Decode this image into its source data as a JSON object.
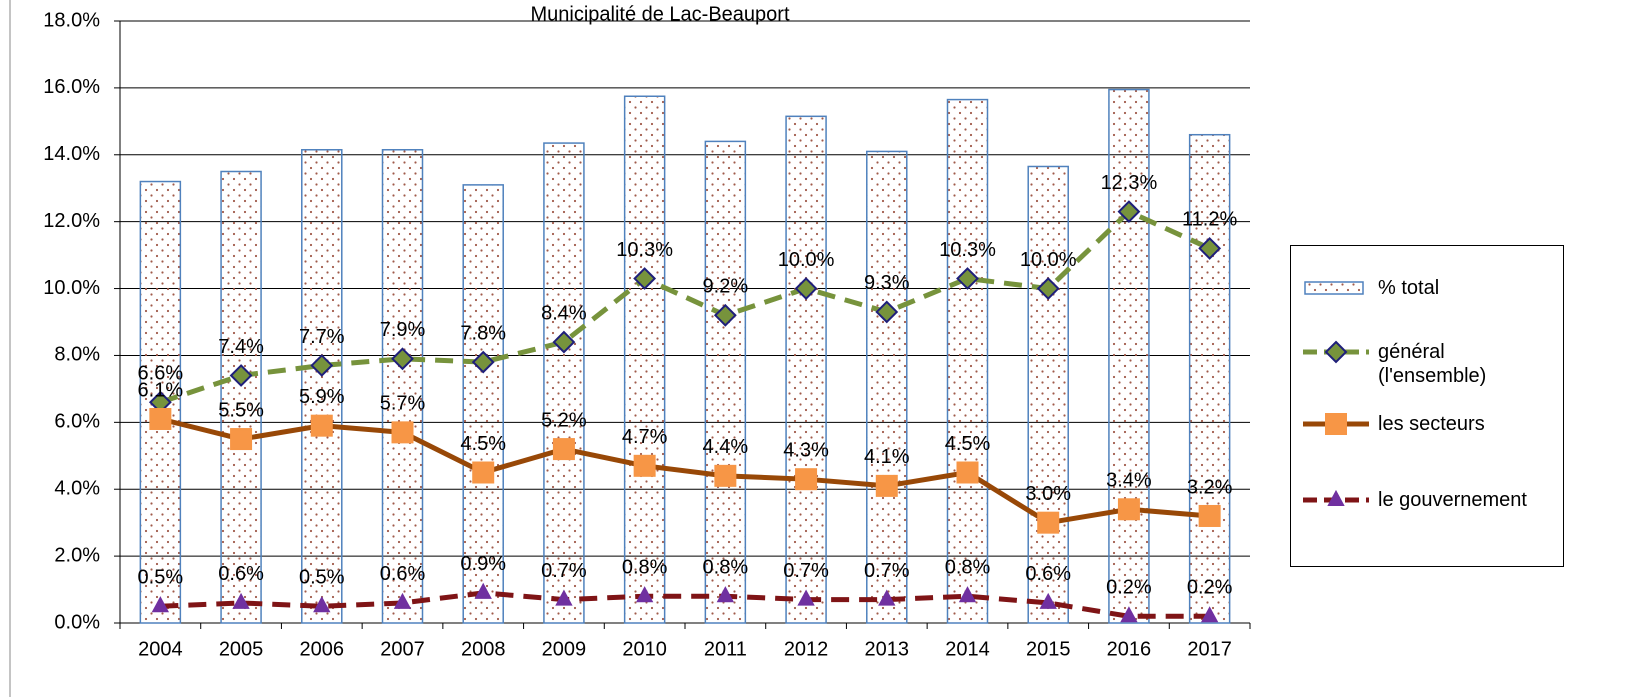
{
  "chart_data": {
    "type": "bar-line",
    "title": "Municipalité de Lac-Beauport",
    "categories": [
      "2004",
      "2005",
      "2006",
      "2007",
      "2008",
      "2009",
      "2010",
      "2011",
      "2012",
      "2013",
      "2014",
      "2015",
      "2016",
      "2017"
    ],
    "series": [
      {
        "name": "% total",
        "kind": "bar",
        "color": "#4f81bd",
        "pattern_color": "#a05a4a",
        "values": [
          13.2,
          13.5,
          14.15,
          14.15,
          13.1,
          14.35,
          15.75,
          14.4,
          15.15,
          14.1,
          15.65,
          13.65,
          15.95,
          14.6
        ]
      },
      {
        "name": "général (l'ensemble)",
        "kind": "line",
        "color": "#77933c",
        "dash": true,
        "marker": "diamond",
        "marker_color": "#77933c",
        "marker_edge": "#1f1f7a",
        "values": [
          6.6,
          7.4,
          7.7,
          7.9,
          7.8,
          8.4,
          10.3,
          9.2,
          10,
          9.3,
          10.3,
          10,
          12.3,
          11.2
        ],
        "value_labels": [
          "6.6%",
          "7.4%",
          "7.7%",
          "7.9%",
          "7.8%",
          "8.4%",
          "10.3%",
          "9.2%",
          "10.0%",
          "9.3%",
          "10.3%",
          "10.0%",
          "12.3%",
          "11.2%"
        ]
      },
      {
        "name": "les secteurs",
        "kind": "line",
        "color": "#984807",
        "dash": false,
        "marker": "square",
        "marker_color": "#f79646",
        "marker_edge": "#f79646",
        "values": [
          6.1,
          5.5,
          5.9,
          5.7,
          4.5,
          5.2,
          4.7,
          4.4,
          4.3,
          4.1,
          4.5,
          3,
          3.4,
          3.2
        ],
        "value_labels": [
          "6.1%",
          "5.5%",
          "5.9%",
          "5.7%",
          "4.5%",
          "5.2%",
          "4.7%",
          "4.4%",
          "4.3%",
          "4.1%",
          "4.5%",
          "3.0%",
          "3.4%",
          "3.2%"
        ]
      },
      {
        "name": "le gouvernement",
        "kind": "line",
        "color": "#7f1416",
        "dash": true,
        "marker": "triangle",
        "marker_color": "#7030a0",
        "marker_edge": "#7030a0",
        "values": [
          0.5,
          0.6,
          0.5,
          0.6,
          0.9,
          0.7,
          0.8,
          0.8,
          0.7,
          0.7,
          0.8,
          0.6,
          0.2,
          0.2
        ],
        "value_labels": [
          "0.5%",
          "0.6%",
          "0.5%",
          "0.6%",
          "0.9%",
          "0.7%",
          "0.8%",
          "0.8%",
          "0.7%",
          "0.7%",
          "0.8%",
          "0.6%",
          "0.2%",
          "0.2%"
        ]
      }
    ],
    "ylim": [
      0,
      18
    ],
    "yticks": [
      {
        "value": 0,
        "label": "0.0%"
      },
      {
        "value": 2,
        "label": "2.0%"
      },
      {
        "value": 4,
        "label": "4.0%"
      },
      {
        "value": 6,
        "label": "6.0%"
      },
      {
        "value": 8,
        "label": "8.0%"
      },
      {
        "value": 10,
        "label": "10.0%"
      },
      {
        "value": 12,
        "label": "12.0%"
      },
      {
        "value": 14,
        "label": "14.0%"
      },
      {
        "value": 16,
        "label": "16.0%"
      },
      {
        "value": 18,
        "label": "18.0%"
      }
    ],
    "grid": true,
    "legend": "right"
  }
}
